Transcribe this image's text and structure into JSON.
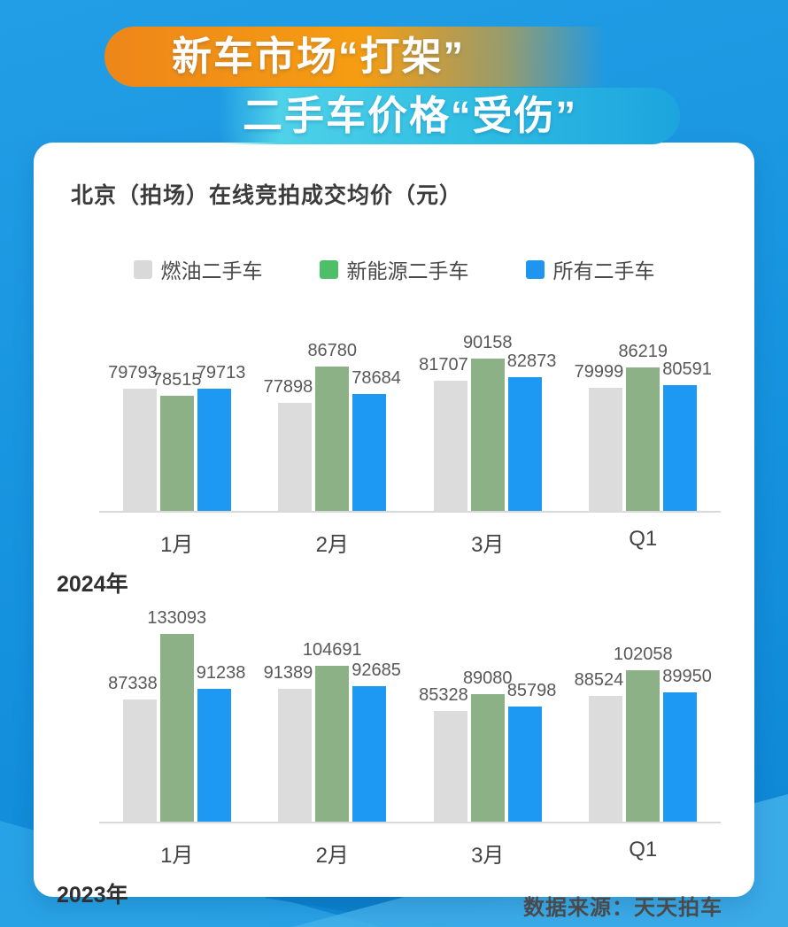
{
  "header": {
    "title_line1": "新车市场“打架”",
    "title_line2": "二手车价格“受伤”"
  },
  "card": {
    "subtitle": "北京（拍场）在线竞拍成交均价（元）",
    "source": "数据来源：天天拍车"
  },
  "legend": [
    {
      "key": "fuel",
      "label": "燃油二手车",
      "color": "#D9D9D9"
    },
    {
      "key": "nev",
      "label": "新能源二手车",
      "color": "#4FBE68"
    },
    {
      "key": "all",
      "label": "所有二手车",
      "color": "#1E96F0"
    }
  ],
  "colors": {
    "background_blue": "#1592DD",
    "card": "#FFFFFF",
    "pill_orange": "#F59D12",
    "pill_cyan": "#2FBDE2",
    "bar_gray": "#DCDCDC",
    "bar_green": "#8CB186",
    "bar_blue": "#1E99F3",
    "value_text": "#585858",
    "axis_line": "#D9D9D9"
  },
  "chart_data": [
    {
      "type": "bar",
      "title": "2024年",
      "categories": [
        "1月",
        "2月",
        "3月",
        "Q1"
      ],
      "series": [
        {
          "key": "fuel",
          "name": "燃油二手车",
          "color": "#DCDCDC",
          "values": [
            79793,
            77898,
            81707,
            79999
          ]
        },
        {
          "key": "nev",
          "name": "新能源二手车",
          "color": "#8CB186",
          "values": [
            78515,
            86780,
            90158,
            86219
          ]
        },
        {
          "key": "all",
          "name": "所有二手车",
          "color": "#1E99F3",
          "values": [
            79713,
            78684,
            82873,
            80591
          ]
        }
      ],
      "xlabel": "",
      "ylabel": "成交均价（元）",
      "ylim": [
        77898,
        90158
      ],
      "grid": false,
      "legend_position": "top",
      "data_labels": true
    },
    {
      "type": "bar",
      "title": "2023年",
      "categories": [
        "1月",
        "2月",
        "3月",
        "Q1"
      ],
      "series": [
        {
          "key": "fuel",
          "name": "燃油二手车",
          "color": "#DCDCDC",
          "values": [
            87338,
            91389,
            85328,
            88524
          ]
        },
        {
          "key": "nev",
          "name": "新能源二手车",
          "color": "#8CB186",
          "values": [
            133093,
            104691,
            89080,
            102058
          ]
        },
        {
          "key": "all",
          "name": "所有二手车",
          "color": "#1E99F3",
          "values": [
            91238,
            92685,
            85798,
            89950
          ]
        }
      ],
      "xlabel": "",
      "ylabel": "成交均价（元）",
      "ylim": [
        85328,
        133093
      ],
      "grid": false,
      "legend_position": "top",
      "data_labels": true
    }
  ]
}
